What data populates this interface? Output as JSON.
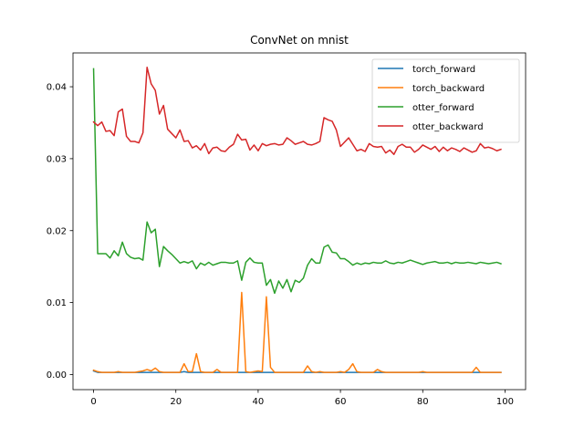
{
  "chart_data": {
    "type": "line",
    "title": "ConvNet on mnist",
    "xlabel": "",
    "ylabel": "",
    "xlim": [
      -5,
      105
    ],
    "ylim": [
      -0.0021,
      0.0447
    ],
    "xticks": [
      0,
      20,
      40,
      60,
      80,
      100
    ],
    "xtick_labels": [
      "0",
      "20",
      "40",
      "60",
      "80",
      "100"
    ],
    "yticks": [
      0.0,
      0.01,
      0.02,
      0.03,
      0.04
    ],
    "ytick_labels": [
      "0.00",
      "0.01",
      "0.02",
      "0.03",
      "0.04"
    ],
    "grid": false,
    "legend_position": "top-right",
    "series": [
      {
        "name": "torch_forward",
        "color": "#1f77b4",
        "values": [
          0.0005,
          0.0003,
          0.0003,
          0.0003,
          0.0003,
          0.0003,
          0.0003,
          0.0003,
          0.0003,
          0.0003,
          0.0003,
          0.0003,
          0.0003,
          0.0003,
          0.0003,
          0.0003,
          0.0003,
          0.0003,
          0.0003,
          0.0003,
          0.0003,
          0.0003,
          0.0004,
          0.0003,
          0.0003,
          0.0003,
          0.0003,
          0.0003,
          0.0003,
          0.0003,
          0.0003,
          0.0003,
          0.0003,
          0.0003,
          0.0003,
          0.0003,
          0.0003,
          0.0003,
          0.0003,
          0.0003,
          0.0003,
          0.0003,
          0.0003,
          0.0003,
          0.0003,
          0.0003,
          0.0003,
          0.0003,
          0.0003,
          0.0003,
          0.0003,
          0.0003,
          0.0003,
          0.0003,
          0.0003,
          0.0003,
          0.0003,
          0.0003,
          0.0003,
          0.0003,
          0.0003,
          0.0003,
          0.0003,
          0.0003,
          0.0003,
          0.0003,
          0.0003,
          0.0003,
          0.0003,
          0.0003,
          0.0003,
          0.0003,
          0.0003,
          0.0003,
          0.0003,
          0.0003,
          0.0003,
          0.0003,
          0.0003,
          0.0003,
          0.0003,
          0.0003,
          0.0003,
          0.0003,
          0.0003,
          0.0003,
          0.0003,
          0.0003,
          0.0003,
          0.0003,
          0.0003,
          0.0003,
          0.0003,
          0.0003,
          0.0003,
          0.0003,
          0.0003,
          0.0003,
          0.0003,
          0.0003
        ]
      },
      {
        "name": "torch_backward",
        "color": "#ff7f0e",
        "values": [
          0.0006,
          0.0004,
          0.0003,
          0.0003,
          0.0003,
          0.0003,
          0.0004,
          0.0003,
          0.0003,
          0.0003,
          0.0003,
          0.0004,
          0.0005,
          0.0007,
          0.0005,
          0.0009,
          0.0004,
          0.0003,
          0.0003,
          0.0003,
          0.0003,
          0.0003,
          0.0015,
          0.0004,
          0.0004,
          0.0029,
          0.0004,
          0.0003,
          0.0003,
          0.0003,
          0.0007,
          0.0003,
          0.0003,
          0.0003,
          0.0003,
          0.0003,
          0.0114,
          0.0004,
          0.0003,
          0.0004,
          0.0005,
          0.0004,
          0.0108,
          0.001,
          0.0003,
          0.0003,
          0.0003,
          0.0003,
          0.0003,
          0.0003,
          0.0003,
          0.0003,
          0.0012,
          0.0004,
          0.0003,
          0.0004,
          0.0003,
          0.0003,
          0.0003,
          0.0003,
          0.0004,
          0.0003,
          0.0007,
          0.0015,
          0.0004,
          0.0003,
          0.0003,
          0.0003,
          0.0003,
          0.0007,
          0.0004,
          0.0003,
          0.0003,
          0.0003,
          0.0003,
          0.0003,
          0.0003,
          0.0003,
          0.0003,
          0.0003,
          0.0004,
          0.0003,
          0.0003,
          0.0003,
          0.0003,
          0.0003,
          0.0003,
          0.0003,
          0.0003,
          0.0003,
          0.0003,
          0.0003,
          0.0003,
          0.001,
          0.0003,
          0.0003,
          0.0003,
          0.0003,
          0.0003,
          0.0003
        ]
      },
      {
        "name": "otter_forward",
        "color": "#2ca02c",
        "values": [
          0.0425,
          0.0168,
          0.0168,
          0.0168,
          0.0162,
          0.0172,
          0.0165,
          0.0184,
          0.0168,
          0.0163,
          0.0161,
          0.0162,
          0.0159,
          0.0212,
          0.0197,
          0.0202,
          0.015,
          0.0178,
          0.0172,
          0.0167,
          0.0161,
          0.0155,
          0.0157,
          0.0155,
          0.0158,
          0.0147,
          0.0155,
          0.0152,
          0.0156,
          0.0152,
          0.0154,
          0.0156,
          0.0156,
          0.0155,
          0.0155,
          0.0158,
          0.0131,
          0.0156,
          0.0162,
          0.0156,
          0.0155,
          0.0155,
          0.0124,
          0.0132,
          0.0113,
          0.013,
          0.012,
          0.0132,
          0.0115,
          0.0131,
          0.0128,
          0.0134,
          0.0152,
          0.0161,
          0.0155,
          0.0155,
          0.0177,
          0.018,
          0.017,
          0.0169,
          0.0161,
          0.0161,
          0.0157,
          0.0152,
          0.0155,
          0.0153,
          0.0155,
          0.0154,
          0.0156,
          0.0155,
          0.0155,
          0.0158,
          0.0155,
          0.0154,
          0.0156,
          0.0155,
          0.0157,
          0.0159,
          0.0157,
          0.0155,
          0.0153,
          0.0155,
          0.0156,
          0.0157,
          0.0155,
          0.0155,
          0.0156,
          0.0154,
          0.0156,
          0.0155,
          0.0155,
          0.0156,
          0.0155,
          0.0154,
          0.0156,
          0.0155,
          0.0154,
          0.0155,
          0.0156,
          0.0154
        ]
      },
      {
        "name": "otter_backward",
        "color": "#d62728",
        "values": [
          0.0351,
          0.0346,
          0.0351,
          0.0338,
          0.0339,
          0.0332,
          0.0365,
          0.0369,
          0.0331,
          0.0324,
          0.0324,
          0.0322,
          0.0336,
          0.0427,
          0.0404,
          0.0395,
          0.0362,
          0.0374,
          0.0341,
          0.0335,
          0.0329,
          0.034,
          0.0324,
          0.0325,
          0.0315,
          0.0318,
          0.0312,
          0.0321,
          0.0307,
          0.0315,
          0.0316,
          0.0311,
          0.031,
          0.0316,
          0.032,
          0.0334,
          0.0326,
          0.0327,
          0.0312,
          0.0319,
          0.0311,
          0.0321,
          0.0318,
          0.032,
          0.0321,
          0.0319,
          0.032,
          0.0329,
          0.0325,
          0.032,
          0.0322,
          0.0324,
          0.032,
          0.0319,
          0.0321,
          0.0324,
          0.0357,
          0.0354,
          0.0352,
          0.034,
          0.0317,
          0.0323,
          0.0329,
          0.032,
          0.0311,
          0.0313,
          0.031,
          0.0321,
          0.0317,
          0.0316,
          0.0317,
          0.0308,
          0.0312,
          0.0306,
          0.0317,
          0.032,
          0.0316,
          0.0316,
          0.0309,
          0.0313,
          0.0319,
          0.0316,
          0.0313,
          0.0317,
          0.031,
          0.0316,
          0.0311,
          0.0315,
          0.0313,
          0.031,
          0.0315,
          0.0312,
          0.0309,
          0.0311,
          0.0321,
          0.0315,
          0.0316,
          0.0314,
          0.0311,
          0.0313
        ]
      }
    ]
  }
}
